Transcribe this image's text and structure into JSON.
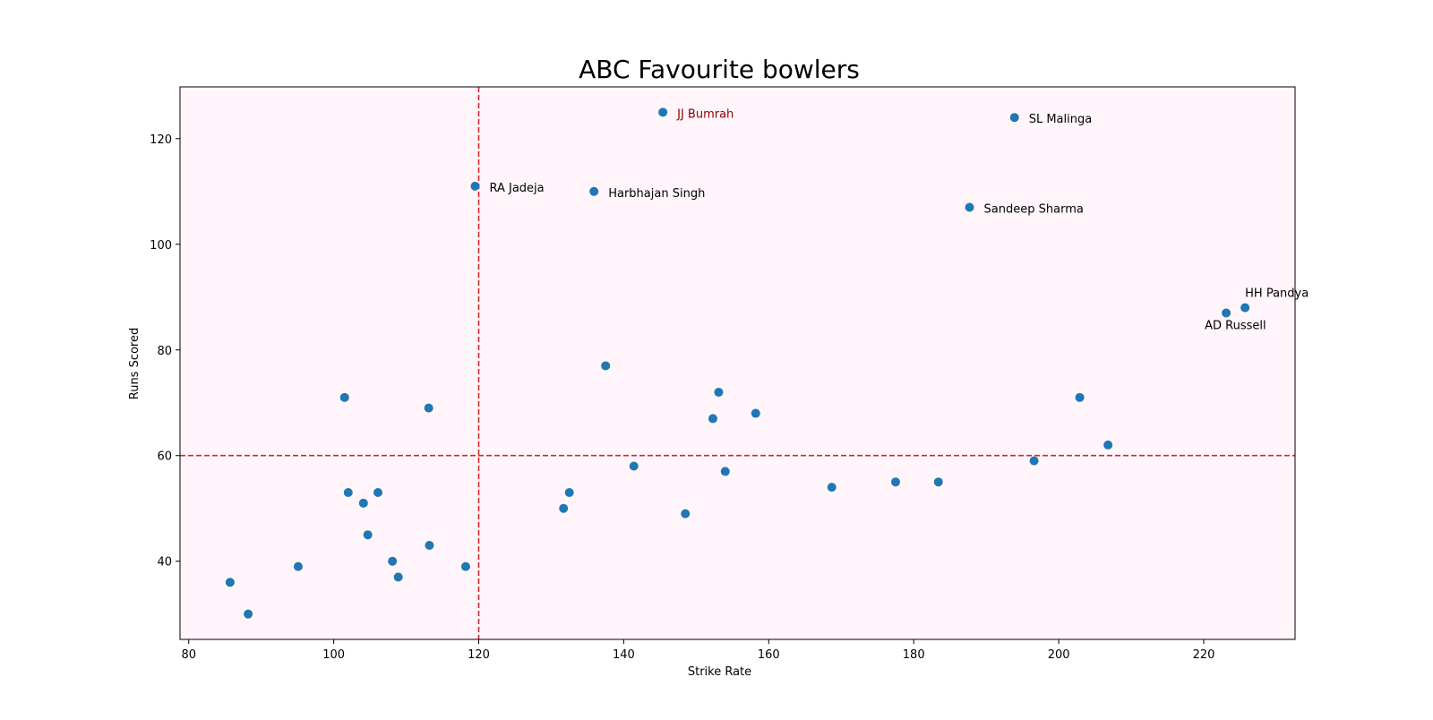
{
  "chart_data": {
    "type": "scatter",
    "title": "ABC Favourite bowlers",
    "xlabel": "Strike Rate",
    "ylabel": "Runs Scored",
    "xlim": [
      78.8,
      232.6
    ],
    "ylim": [
      25.2,
      129.8
    ],
    "xticks": [
      80,
      100,
      120,
      140,
      160,
      180,
      200,
      220
    ],
    "yticks": [
      40,
      60,
      80,
      100,
      120
    ],
    "grid": false,
    "legend": "none",
    "reference_lines": {
      "vertical_x": 120,
      "horizontal_y": 60
    },
    "colors": {
      "point": "#1f77b4",
      "reference_line": "#d62728",
      "plot_background": "#fff5fa",
      "highlight_label": "#8b0000",
      "label": "#000000"
    },
    "series": [
      {
        "x": [
          85.7,
          88.2,
          95.1,
          101.5,
          102.0,
          104.1,
          104.7,
          106.1,
          108.1,
          108.9,
          113.1,
          113.2,
          118.2,
          119.5,
          131.7,
          132.5,
          135.9,
          137.5,
          141.4,
          145.4,
          148.5,
          152.3,
          153.1,
          154.0,
          158.2,
          168.7,
          177.5,
          183.4,
          187.7,
          193.9,
          196.6,
          202.9,
          206.8,
          223.1,
          225.7
        ],
        "y": [
          36,
          30,
          39,
          71,
          53,
          51,
          45,
          53,
          40,
          37,
          69,
          43,
          39,
          111,
          50,
          53,
          110,
          77,
          58,
          125,
          49,
          67,
          72,
          57,
          68,
          54,
          55,
          55,
          107,
          124,
          59,
          71,
          62,
          87,
          88
        ]
      }
    ],
    "annotations": [
      {
        "text": "JJ Bumrah",
        "x": 145.4,
        "y": 125,
        "highlight": true,
        "anchor": "right"
      },
      {
        "text": "SL Malinga",
        "x": 193.9,
        "y": 124,
        "highlight": false,
        "anchor": "right"
      },
      {
        "text": "RA Jadeja",
        "x": 119.5,
        "y": 111,
        "highlight": false,
        "anchor": "right"
      },
      {
        "text": "Harbhajan Singh",
        "x": 135.9,
        "y": 110,
        "highlight": false,
        "anchor": "right"
      },
      {
        "text": "Sandeep Sharma",
        "x": 187.7,
        "y": 107,
        "highlight": false,
        "anchor": "right"
      },
      {
        "text": "HH Pandya",
        "x": 225.7,
        "y": 88,
        "highlight": false,
        "anchor": "above"
      },
      {
        "text": "AD Russell",
        "x": 223.1,
        "y": 87,
        "highlight": false,
        "anchor": "below"
      }
    ]
  }
}
